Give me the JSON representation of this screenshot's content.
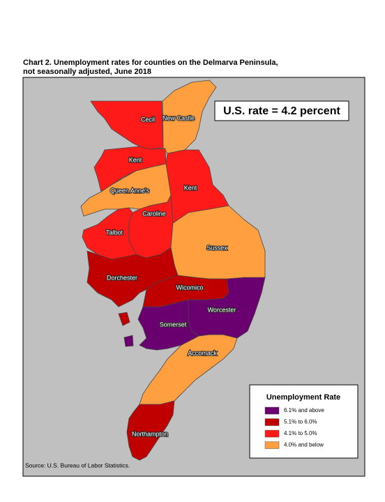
{
  "title": [
    "Chart 2. Unemployment rates for counties on the Delmarva Peninsula,",
    "not seasonally adjusted, June 2018"
  ],
  "note": "U.S. rate = 4.2 percent",
  "source": "Source: U.S. Bureau of Labor Statistics.",
  "legend": {
    "title": "Unemployment Rate",
    "entries": [
      {
        "label": "6.1% and above",
        "color": "#6a0070"
      },
      {
        "label": "5.1% to 6.0%",
        "color": "#c00000"
      },
      {
        "label": "4.1% to 5.0%",
        "color": "#ff1a1a"
      },
      {
        "label": "4.0% and below",
        "color": "#ff9f40"
      }
    ]
  },
  "counties": [
    {
      "name": "Cecil",
      "color": "#ff1a1a"
    },
    {
      "name": "New Castle",
      "color": "#ff9f40"
    },
    {
      "name": "Kent",
      "color": "#ff1a1a"
    },
    {
      "name": "Kent",
      "color": "#ff1a1a"
    },
    {
      "name": "Queen Anne's",
      "color": "#ff9f40"
    },
    {
      "name": "Caroline",
      "color": "#ff1a1a"
    },
    {
      "name": "Talbot",
      "color": "#ff1a1a"
    },
    {
      "name": "Sussex",
      "color": "#ff9f40"
    },
    {
      "name": "Dorchester",
      "color": "#c00000"
    },
    {
      "name": "Wicomico",
      "color": "#c00000"
    },
    {
      "name": "Worcester",
      "color": "#6a0070"
    },
    {
      "name": "Somerset",
      "color": "#6a0070"
    },
    {
      "name": "Accomack",
      "color": "#ff9f40"
    },
    {
      "name": "Northampton",
      "color": "#c00000"
    }
  ]
}
